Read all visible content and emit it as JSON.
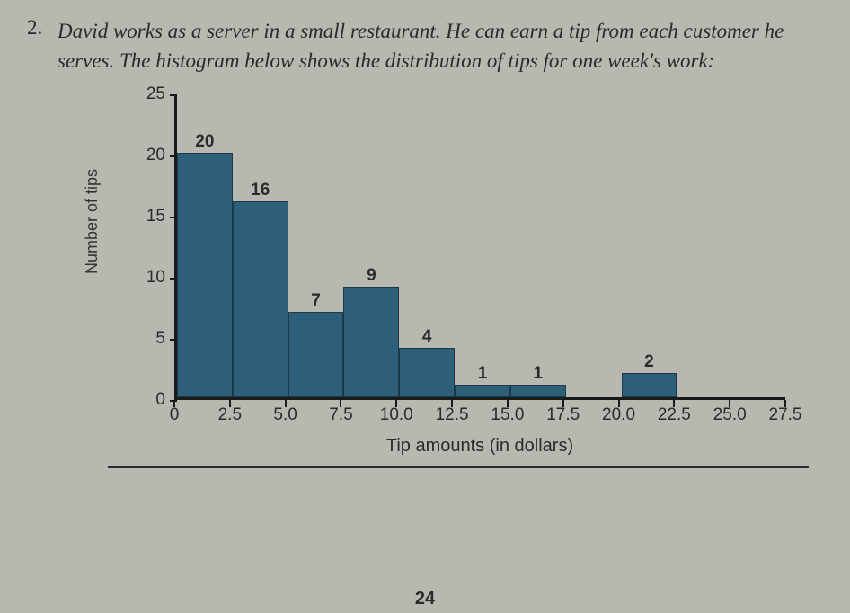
{
  "question": {
    "number": "2.",
    "text": "David works as a server in a small restaurant. He can earn a tip from each customer he serves. The histogram below shows the distribution of tips for one week's work:"
  },
  "chart": {
    "type": "histogram",
    "ylabel": "Number of tips",
    "xlabel": "Tip amounts (in dollars)",
    "ylim": [
      0,
      25
    ],
    "ytick_step": 5,
    "yticks": [
      0,
      5,
      10,
      15,
      20,
      25
    ],
    "xlim": [
      0,
      27.5
    ],
    "bin_width": 2.5,
    "xticks": [
      "0",
      "2.5",
      "5.0",
      "7.5",
      "10.0",
      "12.5",
      "15.0",
      "17.5",
      "20.0",
      "22.5",
      "25.0",
      "27.5"
    ],
    "bars": [
      {
        "x0": 0,
        "x1": 2.5,
        "value": 20
      },
      {
        "x0": 2.5,
        "x1": 5.0,
        "value": 16
      },
      {
        "x0": 5.0,
        "x1": 7.5,
        "value": 7
      },
      {
        "x0": 7.5,
        "x1": 10.0,
        "value": 9
      },
      {
        "x0": 10.0,
        "x1": 12.5,
        "value": 4
      },
      {
        "x0": 12.5,
        "x1": 15.0,
        "value": 1
      },
      {
        "x0": 15.0,
        "x1": 17.5,
        "value": 1
      },
      {
        "x0": 20.0,
        "x1": 22.5,
        "value": 2
      }
    ],
    "bar_color": "#2d5f7a",
    "bar_border_color": "#1a3a48",
    "axis_color": "#1a1a1a",
    "background_color": "#b8b8b0",
    "label_fontsize": 19,
    "barlabel_fontsize": 19,
    "axislabel_fontsize": 20
  },
  "page_number": "24"
}
